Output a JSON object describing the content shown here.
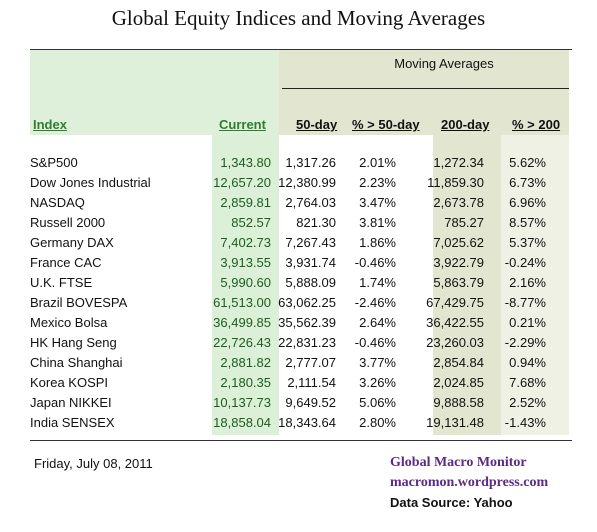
{
  "title": "Global Equity Indices and Moving Averages",
  "moving_averages_label": "Moving Averages",
  "headers": {
    "index": "Index",
    "current": "Current",
    "d50": "50-day",
    "p50": "% > 50-day",
    "d200": "200-day",
    "p200": "% > 200"
  },
  "rows": [
    {
      "name": "S&P500",
      "current": "1,343.80",
      "d50": "1,317.26",
      "p50": "2.01%",
      "d200": "1,272.34",
      "p200": "5.62%"
    },
    {
      "name": "Dow Jones Industrial",
      "current": "12,657.20",
      "d50": "12,380.99",
      "p50": "2.23%",
      "d200": "11,859.30",
      "p200": "6.73%"
    },
    {
      "name": "NASDAQ",
      "current": "2,859.81",
      "d50": "2,764.03",
      "p50": "3.47%",
      "d200": "2,673.78",
      "p200": "6.96%"
    },
    {
      "name": "Russell 2000",
      "current": "852.57",
      "d50": "821.30",
      "p50": "3.81%",
      "d200": "785.27",
      "p200": "8.57%"
    },
    {
      "name": "Germany DAX",
      "current": "7,402.73",
      "d50": "7,267.43",
      "p50": "1.86%",
      "d200": "7,025.62",
      "p200": "5.37%"
    },
    {
      "name": "France CAC",
      "current": "3,913.55",
      "d50": "3,931.74",
      "p50": "-0.46%",
      "d200": "3,922.79",
      "p200": "-0.24%"
    },
    {
      "name": "U.K. FTSE",
      "current": "5,990.60",
      "d50": "5,888.09",
      "p50": "1.74%",
      "d200": "5,863.79",
      "p200": "2.16%"
    },
    {
      "name": "Brazil BOVESPA",
      "current": "61,513.00",
      "d50": "63,062.25",
      "p50": "-2.46%",
      "d200": "67,429.75",
      "p200": "-8.77%"
    },
    {
      "name": "Mexico Bolsa",
      "current": "36,499.85",
      "d50": "35,562.39",
      "p50": "2.64%",
      "d200": "36,422.55",
      "p200": "0.21%"
    },
    {
      "name": "HK  Hang Seng",
      "current": "22,726.43",
      "d50": "22,831.23",
      "p50": "-0.46%",
      "d200": "23,260.03",
      "p200": "-2.29%"
    },
    {
      "name": "China Shanghai",
      "current": "2,881.82",
      "d50": "2,777.07",
      "p50": "3.77%",
      "d200": "2,854.84",
      "p200": "0.94%"
    },
    {
      "name": "Korea KOSPI",
      "current": "2,180.35",
      "d50": "2,111.54",
      "p50": "3.26%",
      "d200": "2,024.85",
      "p200": "7.68%"
    },
    {
      "name": "Japan NIKKEI",
      "current": "10,137.73",
      "d50": "9,649.52",
      "p50": "5.06%",
      "d200": "9,888.58",
      "p200": "2.52%"
    },
    {
      "name": "India SENSEX",
      "current": "18,858.04",
      "d50": "18,343.64",
      "p50": "2.80%",
      "d200": "19,131.48",
      "p200": "-1.43%"
    }
  ],
  "footer": {
    "date": "Friday, July 08, 2011",
    "brand": "Global Macro Monitor",
    "site": "macromon.wordpress.com",
    "source": "Data Source: Yahoo"
  },
  "colors": {
    "index_header": "#2e7d32",
    "brand": "#5b2a86"
  }
}
